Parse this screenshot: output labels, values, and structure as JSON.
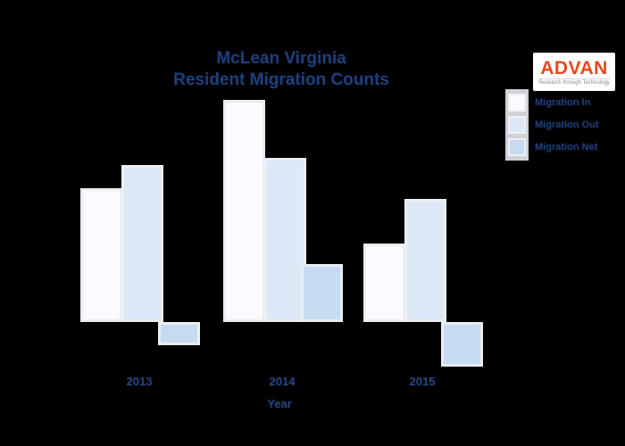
{
  "background_color": "#000000",
  "accent_colors": {
    "title_navy": "#1e3f7d",
    "logo_orange": "#e8491d",
    "bar_in": "#f9fbff",
    "bar_out": "#dde8f7",
    "bar_net": "#c6dbf1"
  },
  "logo": {
    "name": "ADVAN",
    "tagline": "Research through Technology"
  },
  "legend": {
    "position": "top-right",
    "items": [
      {
        "label": "Migration In",
        "color": "#f9fbff"
      },
      {
        "label": "Migration Out",
        "color": "#dde8f7"
      },
      {
        "label": "Migration Net",
        "color": "#c6dbf1"
      }
    ]
  },
  "chart_data": {
    "type": "bar",
    "title": "McLean Virginia Resident Migration Counts",
    "title_lines": [
      "McLean Virginia",
      "Resident Migration Counts"
    ],
    "categories": [
      "2013",
      "2014",
      "2015"
    ],
    "series": [
      {
        "name": "Migration In",
        "values": [
          1500,
          2490,
          880
        ]
      },
      {
        "name": "Migration Out",
        "values": [
          1760,
          1840,
          1380
        ]
      },
      {
        "name": "Migration Net",
        "values": [
          -260,
          650,
          -500
        ]
      }
    ],
    "xlabel": "Year",
    "ylabel": "",
    "y_axis_visible": false,
    "grid": false,
    "baseline": 0,
    "legend_position": "top-right",
    "values_note": "estimated from bar heights; no y-axis labels are visible"
  }
}
